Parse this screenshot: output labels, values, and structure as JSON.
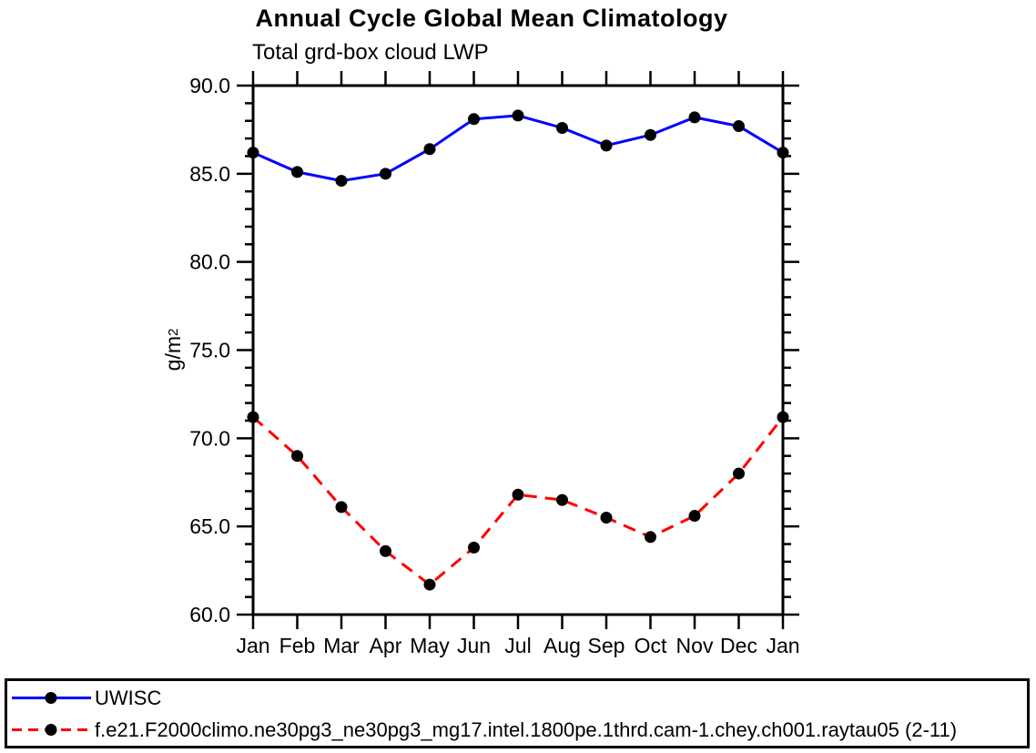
{
  "chart_data": {
    "type": "line",
    "title": "Annual Cycle Global Mean Climatology",
    "subtitle": "Total grd-box cloud LWP",
    "ylabel": "g/m²",
    "ylabel_base": "g/m",
    "ylabel_exponent": "2",
    "categories": [
      "Jan",
      "Feb",
      "Mar",
      "Apr",
      "May",
      "Jun",
      "Jul",
      "Aug",
      "Sep",
      "Oct",
      "Nov",
      "Dec",
      "Jan"
    ],
    "ylim": [
      60,
      90
    ],
    "yticks": [
      60,
      65,
      70,
      75,
      80,
      85,
      90
    ],
    "ytick_labels": [
      "60.0",
      "65.0",
      "70.0",
      "75.0",
      "80.0",
      "85.0",
      "90.0"
    ],
    "minor_tick_interval": 1,
    "grid": false,
    "legend_position": "bottom-full-width-box",
    "axis_color": "#000000",
    "marker_color": "#000000",
    "series": [
      {
        "name": "UWISC",
        "color": "#0000ff",
        "line_style": "solid",
        "marker": "filled-circle",
        "values": [
          86.2,
          85.1,
          84.6,
          85.0,
          86.4,
          88.1,
          88.3,
          87.6,
          86.6,
          87.2,
          88.2,
          87.7,
          86.2
        ]
      },
      {
        "name": "f.e21.F2000climo.ne30pg3_ne30pg3_mg17.intel.1800pe.1thrd.cam-1.chey.ch001.raytau05 (2-11)",
        "color": "#ff0000",
        "line_style": "dashed",
        "marker": "filled-circle",
        "values": [
          71.2,
          69.0,
          66.1,
          63.6,
          61.7,
          63.8,
          66.8,
          66.5,
          65.5,
          64.4,
          65.6,
          68.0,
          71.2
        ]
      }
    ]
  }
}
